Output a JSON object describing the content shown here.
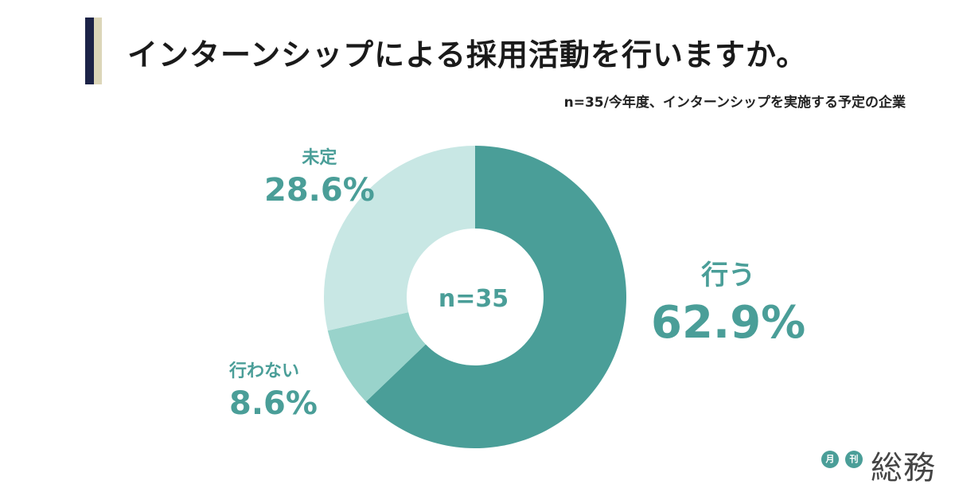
{
  "header": {
    "title": "インターンシップによる採用活動を行いますか。",
    "subtitle": "n=35/今年度、インターンシップを実施する予定の企業"
  },
  "colors": {
    "accent_navy": "#1c2347",
    "accent_cream": "#dcd6b9",
    "label_teal": "#4a9e98"
  },
  "chart_data": {
    "type": "pie",
    "center_label": "n=35",
    "slices": [
      {
        "name": "行う",
        "value": 62.9,
        "label": "62.9%",
        "color": "#4a9e98"
      },
      {
        "name": "行わない",
        "value": 8.6,
        "label": "8.6%",
        "color": "#99d3cb"
      },
      {
        "name": "未定",
        "value": 28.6,
        "label": "28.6%",
        "color": "#c8e7e4"
      }
    ]
  },
  "logo": {
    "badge1": "月",
    "badge2": "刊",
    "word": "総務"
  }
}
